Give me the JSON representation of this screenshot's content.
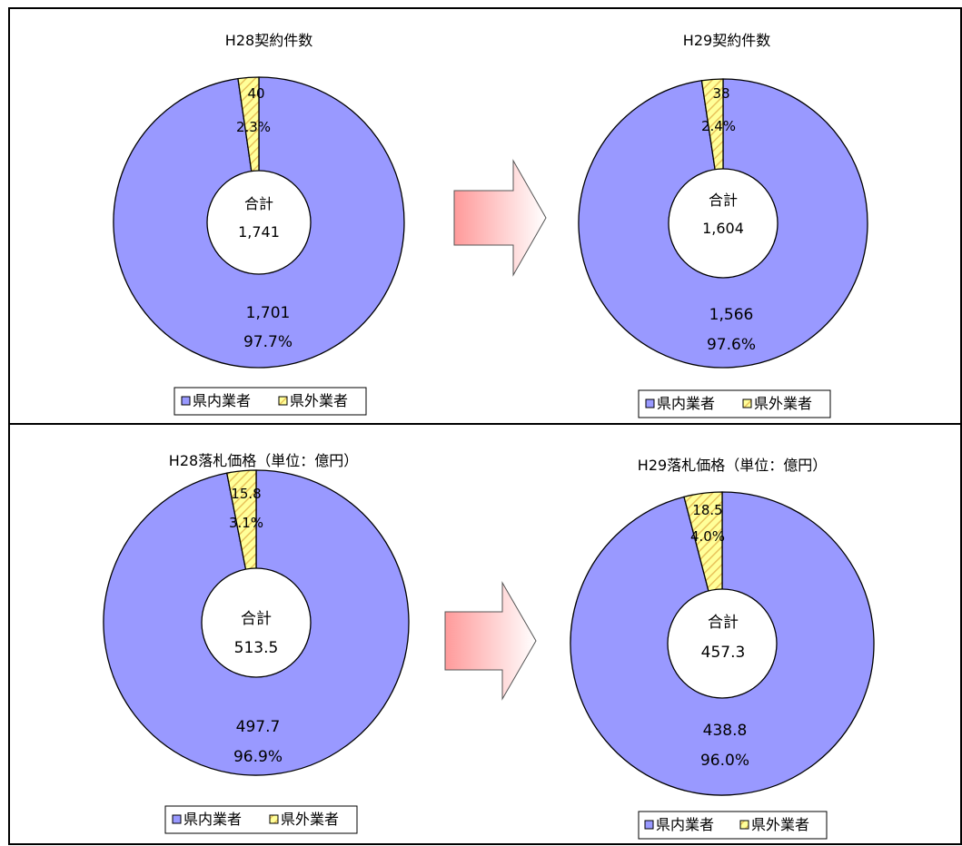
{
  "colors": {
    "inside": "#9999ff",
    "outside_fill": "#ffff99",
    "outside_hatch": "#e8c25a",
    "arrow_start": "#ff9a9a",
    "arrow_end": "#ffffff",
    "border": "#000000"
  },
  "legend_labels": [
    "県内業者",
    "県外業者"
  ],
  "center_label": "合計",
  "chart_data": [
    {
      "type": "pie",
      "title": "H28契約件数",
      "total": "1,741",
      "slices": [
        {
          "name": "県内業者",
          "value": 1701,
          "value_label": "1,701",
          "percent_label": "97.7%"
        },
        {
          "name": "県外業者",
          "value": 40,
          "value_label": "40",
          "percent_label": "2.3%"
        }
      ]
    },
    {
      "type": "pie",
      "title": "H29契約件数",
      "total": "1,604",
      "slices": [
        {
          "name": "県内業者",
          "value": 1566,
          "value_label": "1,566",
          "percent_label": "97.6%"
        },
        {
          "name": "県外業者",
          "value": 38,
          "value_label": "38",
          "percent_label": "2.4%"
        }
      ]
    },
    {
      "type": "pie",
      "title": "H28落札価格（単位：億円）",
      "total": "513.5",
      "slices": [
        {
          "name": "県内業者",
          "value": 497.7,
          "value_label": "497.7",
          "percent_label": "96.9%"
        },
        {
          "name": "県外業者",
          "value": 15.8,
          "value_label": "15.8",
          "percent_label": "3.1%"
        }
      ]
    },
    {
      "type": "pie",
      "title": "H29落札価格（単位：億円）",
      "total": "457.3",
      "slices": [
        {
          "name": "県内業者",
          "value": 438.8,
          "value_label": "438.8",
          "percent_label": "96.0%"
        },
        {
          "name": "県外業者",
          "value": 18.5,
          "value_label": "18.5",
          "percent_label": "4.0%"
        }
      ]
    }
  ]
}
